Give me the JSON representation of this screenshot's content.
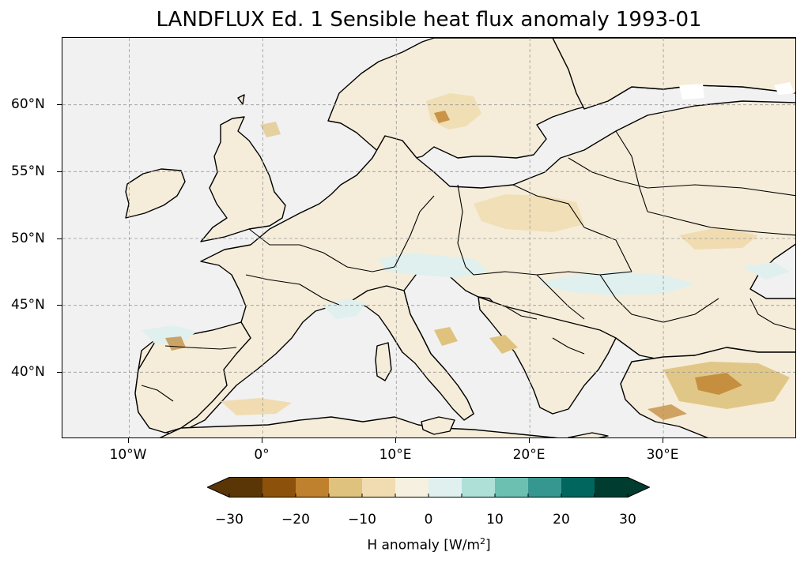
{
  "title": "LANDFLUX Ed. 1 Sensible heat flux anomaly 1993-01",
  "map": {
    "projection": "PlateCarree",
    "lon_range": [
      -15,
      40
    ],
    "lat_range": [
      35,
      65
    ],
    "background_color": "#f1f1f1",
    "land_base_color": "#f5edd9",
    "lat_labels": [
      "60°N",
      "55°N",
      "50°N",
      "45°N",
      "40°N"
    ],
    "lat_values": [
      60,
      55,
      50,
      45,
      40
    ],
    "lon_labels": [
      "10°W",
      "0°",
      "10°E",
      "20°E",
      "30°E"
    ],
    "lon_values": [
      -10,
      0,
      10,
      20,
      30
    ],
    "gridlines": true
  },
  "colorbar": {
    "label_prefix": "H anomaly [W/m",
    "label_sup": "2",
    "label_suffix": "]",
    "tick_labels": [
      "−30",
      "−20",
      "−10",
      "0",
      "10",
      "20",
      "30"
    ],
    "tick_values": [
      -30,
      -20,
      -10,
      0,
      10,
      20,
      30
    ],
    "boundaries": [
      -30,
      -25,
      -20,
      -15,
      -10,
      -5,
      0,
      5,
      10,
      15,
      20,
      25,
      30
    ],
    "colors": [
      "#5a3506",
      "#8c510a",
      "#bf812d",
      "#dfc27d",
      "#f0dcb0",
      "#f5f0e0",
      "#dff0ee",
      "#aee0d8",
      "#6cc0b2",
      "#35978f",
      "#01665e",
      "#003c30"
    ],
    "extend": "both"
  }
}
